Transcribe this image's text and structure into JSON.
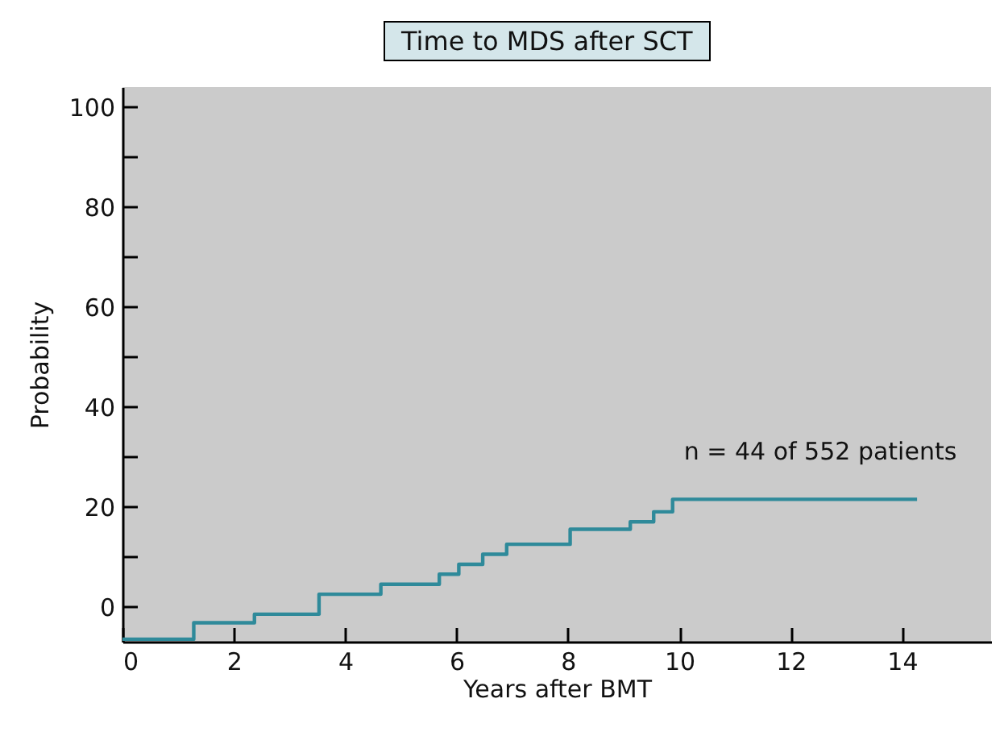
{
  "chart_data": {
    "type": "step",
    "title": "Time to MDS after SCT",
    "xlabel": "Years after BMT",
    "ylabel": "Probability",
    "x": [
      0,
      1.28,
      2.37,
      3.53,
      4.64,
      5.69,
      6.04,
      6.47,
      6.9,
      8.04,
      9.12,
      9.54,
      9.88,
      14.27
    ],
    "series": [
      {
        "color": "#2f8a9a",
        "values": [
          -6.5,
          -3.2,
          -1.5,
          2.5,
          4.5,
          6.5,
          8.5,
          10.5,
          12.5,
          15.5,
          17,
          19,
          21.5,
          21.5
        ]
      }
    ],
    "xlim": [
      0,
      15.6
    ],
    "ylim": [
      -7,
      104
    ],
    "xticks": [
      0,
      2,
      4,
      6,
      8,
      10,
      12,
      14
    ],
    "yticks": [
      0,
      {
        "value": 10,
        "label": null
      },
      20,
      {
        "value": 30,
        "label": null
      },
      40,
      {
        "value": 50,
        "label": null
      },
      60,
      {
        "value": 70,
        "label": null
      },
      80,
      {
        "value": 90,
        "label": null
      },
      100
    ],
    "grid": false,
    "annotations": [
      "n = 44 of 552 patients"
    ]
  }
}
